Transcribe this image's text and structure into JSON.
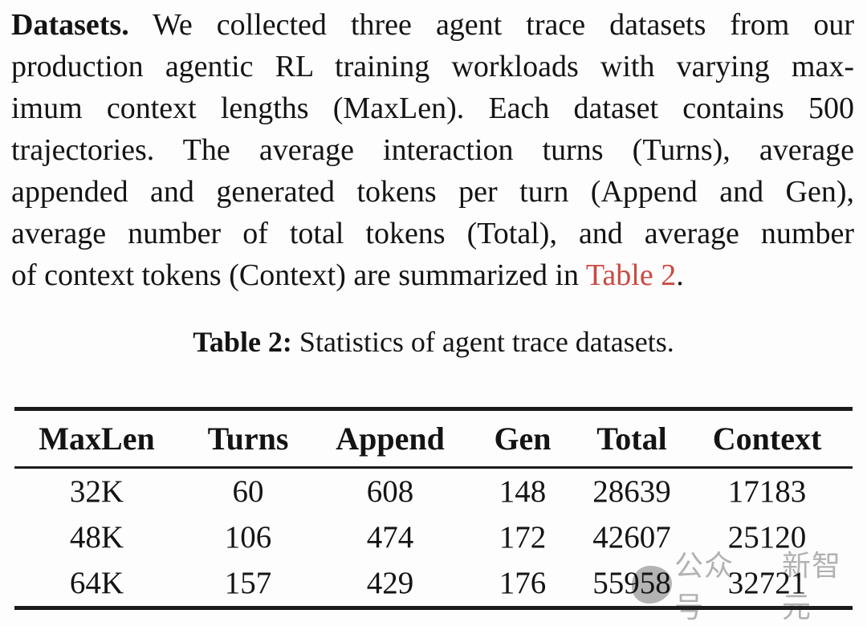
{
  "page": {
    "background_color": "#fdfdfd",
    "text_color": "#141414",
    "link_color": "#cb4a43",
    "watermark_color": "#b2b2b2"
  },
  "paragraph": {
    "lead": "Datasets.",
    "line1_rest": "We collected three agent trace datasets from our",
    "line2": "production agentic RL training workloads with varying max-",
    "line3": "imum context lengths (MaxLen). Each dataset contains 500",
    "line4": "trajectories. The average interaction turns (Turns), average",
    "line5": "appended and generated tokens per turn (Append and Gen),",
    "line6": "average number of total tokens (Total), and average number",
    "line7_pre": "of context tokens (Context) are summarized in",
    "link_text": "Table 2",
    "line7_post": "."
  },
  "caption": {
    "label": "Table 2:",
    "text": "Statistics of agent trace datasets."
  },
  "table": {
    "columns": [
      "MaxLen",
      "Turns",
      "Append",
      "Gen",
      "Total",
      "Context"
    ],
    "rows": [
      [
        "32K",
        "60",
        "608",
        "148",
        "28639",
        "17183"
      ],
      [
        "48K",
        "106",
        "474",
        "172",
        "42607",
        "25120"
      ],
      [
        "64K",
        "157",
        "429",
        "176",
        "55958",
        "32721"
      ]
    ]
  },
  "watermark": {
    "prefix": "公众号",
    "suffix": "新智元"
  }
}
